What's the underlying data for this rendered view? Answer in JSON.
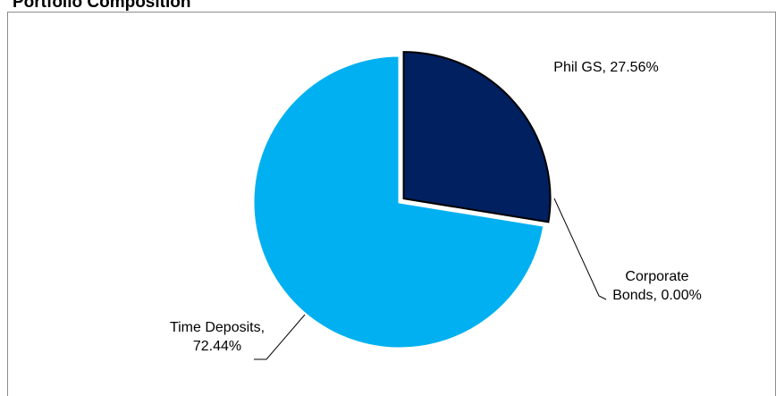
{
  "chart_data": {
    "type": "pie",
    "title": "Portfolio Composition",
    "slices": [
      {
        "name": "Phil GS",
        "value": 27.56,
        "label_line1": "Phil GS, 27.56%",
        "label_line2": "",
        "color": "#002060",
        "exploded": true
      },
      {
        "name": "Corporate Bonds",
        "value": 0.0,
        "label_line1": "Corporate",
        "label_line2": "Bonds, 0.00%",
        "color": "#ffffff",
        "exploded": false
      },
      {
        "name": "Time Deposits",
        "value": 72.44,
        "label_line1": "Time Deposits,",
        "label_line2": "72.44%",
        "color": "#00b0f0",
        "exploded": false
      }
    ]
  }
}
